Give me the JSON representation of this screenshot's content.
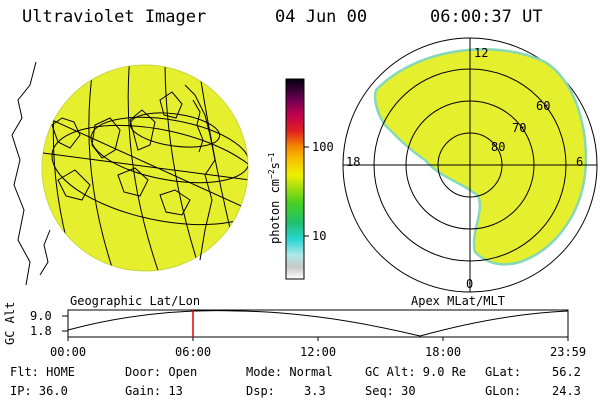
{
  "header": {
    "title": "Ultraviolet Imager",
    "date": "04 Jun 00",
    "time": "06:00:37 UT"
  },
  "colorbar": {
    "label": "photon cm",
    "label_sup": "−2",
    "label_unit": "s",
    "label_sup2": "−1",
    "ticks": [
      "100",
      "10"
    ]
  },
  "geo_panel": {
    "label": "Geographic Lat/Lon"
  },
  "polar_panel": {
    "label": "Apex MLat/MLT",
    "mlt_labels": {
      "top": "12",
      "left": "18",
      "right": "6",
      "bottom": "0"
    },
    "lat_labels": [
      "60",
      "70",
      "80"
    ]
  },
  "altitude_plot": {
    "axis_label": "GC Alt",
    "y_ticks": [
      "9.0",
      "1.8"
    ],
    "x_ticks": [
      "00:00",
      "06:00",
      "12:00",
      "18:00",
      "23:59"
    ],
    "current_time_fraction": 0.25,
    "marker_color": "#e00000"
  },
  "status": {
    "row1": {
      "flt": "Flt: HOME",
      "door": "Door: Open",
      "mode": "Mode: Normal",
      "gc_alt": "GC Alt: 9.0 Re",
      "glat_label": "GLat:",
      "glat_value": "56.2"
    },
    "row2": {
      "ip": "IP: 36.0",
      "gain": "Gain: 13",
      "dsp_label": "Dsp:",
      "dsp_value": "3.3",
      "seq": "Seq: 30",
      "glon_label": "GLon:",
      "glon_value": "24.3"
    }
  },
  "colors": {
    "image_fill": "#e6ef2e",
    "ring_edge": "#86d8b6"
  }
}
